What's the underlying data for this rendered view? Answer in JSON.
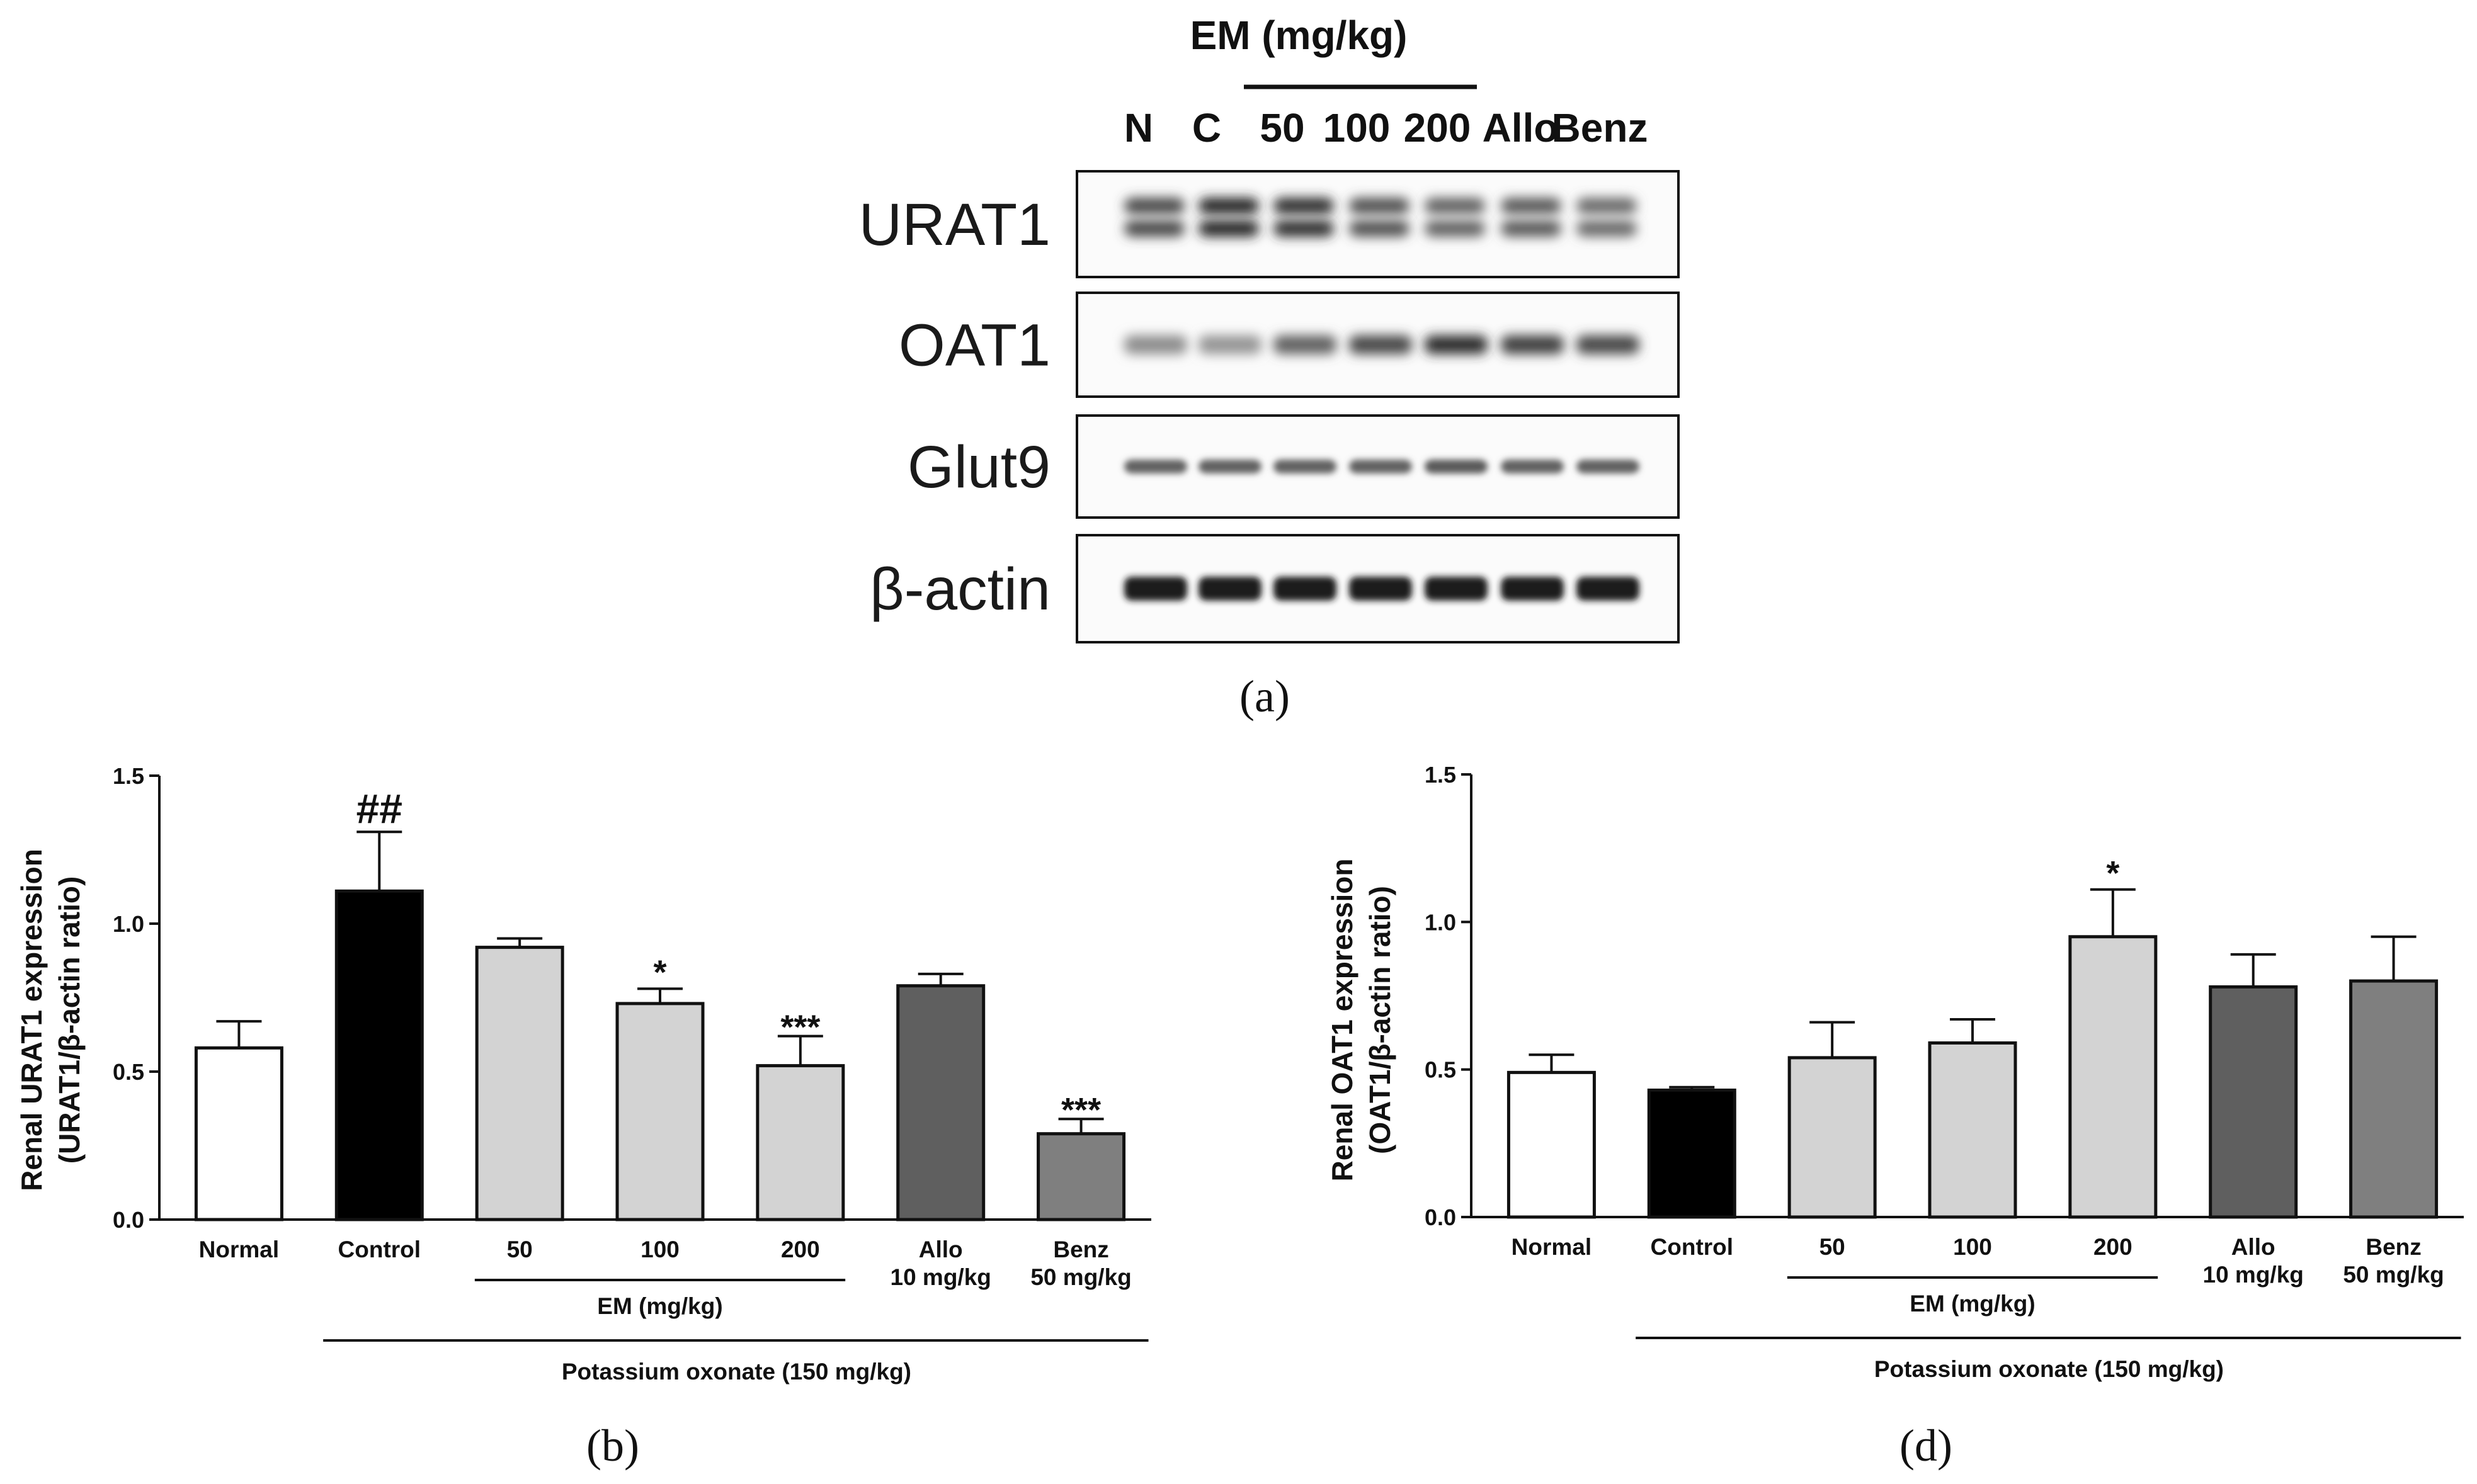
{
  "figure": {
    "panel_labels": {
      "a": "(a)",
      "b": "(b)",
      "d": "(d)"
    }
  },
  "blot": {
    "dose_header": "EM (mg/kg)",
    "lanes": [
      "N",
      "C",
      "50",
      "100",
      "200",
      "Allo",
      "Benz"
    ],
    "rows": [
      "URAT1",
      "OAT1",
      "Glut9",
      "β-actin"
    ],
    "band_intensity": {
      "URAT1": [
        0.75,
        0.95,
        0.9,
        0.7,
        0.6,
        0.65,
        0.55
      ],
      "OAT1": [
        0.35,
        0.3,
        0.6,
        0.75,
        0.9,
        0.8,
        0.75
      ],
      "Glut9": [
        0.6,
        0.6,
        0.6,
        0.6,
        0.65,
        0.6,
        0.6
      ],
      "β-actin": [
        1,
        1,
        1,
        1,
        1,
        1,
        1
      ]
    }
  },
  "chart_data": [
    {
      "id": "b",
      "type": "bar",
      "ylabel_line1": "Renal URAT1 expression",
      "ylabel_line2": "(URAT1/β-actin ratio)",
      "ylim": [
        0,
        1.5
      ],
      "yticks": [
        "0.0",
        "0.5",
        "1.0",
        "1.5"
      ],
      "categories": [
        "Normal",
        "Control",
        "50",
        "100",
        "200",
        "Allo",
        "Benz"
      ],
      "category_sublabels": [
        "",
        "",
        "",
        "",
        "",
        "10 mg/kg",
        "50 mg/kg"
      ],
      "values": [
        0.58,
        1.11,
        0.92,
        0.73,
        0.52,
        0.79,
        0.29
      ],
      "errors": [
        0.09,
        0.2,
        0.03,
        0.05,
        0.1,
        0.04,
        0.05
      ],
      "significance": [
        "",
        "##",
        "",
        "*",
        "***",
        "",
        "***"
      ],
      "colors": [
        "#ffffff",
        "#000000",
        "#d3d3d3",
        "#d3d3d3",
        "#d3d3d3",
        "#5f5f5f",
        "#7f7f7f"
      ],
      "group_label": "EM (mg/kg)",
      "treatment_label": "Potassium oxonate (150 mg/kg)"
    },
    {
      "id": "d",
      "type": "bar",
      "ylabel_line1": "Renal OAT1 expression",
      "ylabel_line2": "(OAT1/β-actin ratio)",
      "ylim": [
        0,
        1.5
      ],
      "yticks": [
        "0.0",
        "0.5",
        "1.0",
        "1.5"
      ],
      "categories": [
        "Normal",
        "Control",
        "50",
        "100",
        "200",
        "Allo",
        "Benz"
      ],
      "category_sublabels": [
        "",
        "",
        "",
        "",
        "",
        "10 mg/kg",
        "50 mg/kg"
      ],
      "values": [
        0.49,
        0.43,
        0.54,
        0.59,
        0.95,
        0.78,
        0.8
      ],
      "errors": [
        0.06,
        0.01,
        0.12,
        0.08,
        0.16,
        0.11,
        0.15
      ],
      "significance": [
        "",
        "",
        "",
        "",
        "*",
        "",
        ""
      ],
      "colors": [
        "#ffffff",
        "#000000",
        "#d3d3d3",
        "#d3d3d3",
        "#d3d3d3",
        "#5f5f5f",
        "#7f7f7f"
      ],
      "group_label": "EM (mg/kg)",
      "treatment_label": "Potassium oxonate (150 mg/kg)"
    }
  ]
}
